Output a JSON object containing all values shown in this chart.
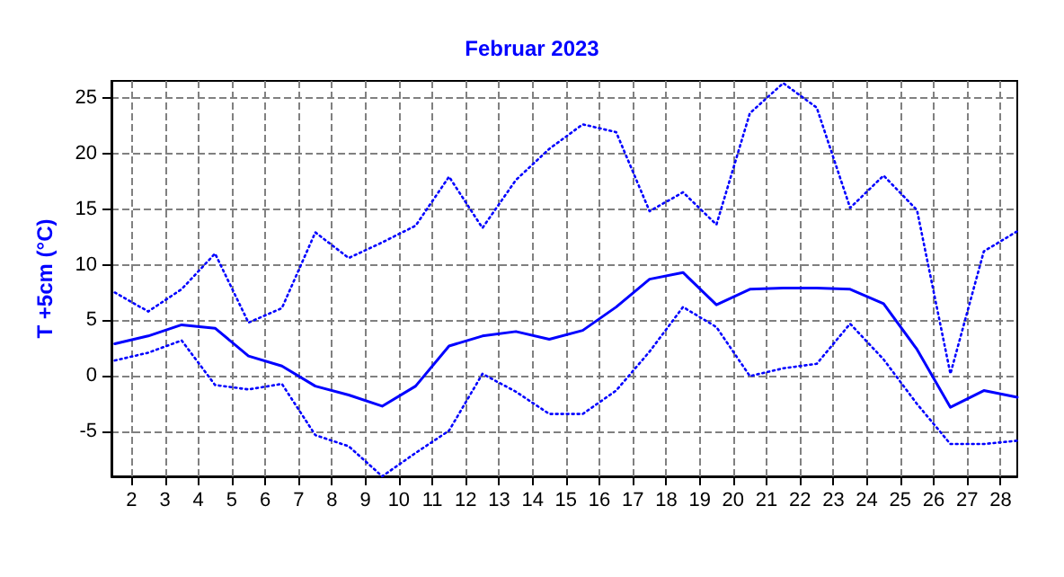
{
  "chart_data": {
    "type": "line",
    "title": "Februar 2023",
    "ylabel": "T +5cm (°C)",
    "x": [
      1.5,
      2.5,
      3.5,
      4.5,
      5.5,
      6.5,
      7.5,
      8.5,
      9.5,
      10.5,
      11.5,
      12.5,
      13.5,
      14.5,
      15.5,
      16.5,
      17.5,
      18.5,
      19.5,
      20.5,
      21.5,
      22.5,
      23.5,
      24.5,
      25.5,
      26.5,
      27.5,
      28.5
    ],
    "series": [
      {
        "color": "#0000ff",
        "line_style": "dotted",
        "values": [
          7.5,
          5.8,
          7.8,
          11.0,
          4.8,
          6.1,
          12.9,
          10.6,
          12.0,
          13.5,
          17.9,
          13.3,
          17.6,
          20.4,
          22.6,
          21.9,
          14.8,
          16.5,
          13.6,
          23.6,
          26.3,
          24.1,
          15.1,
          18.0,
          14.9,
          0.2,
          11.2,
          13.0
        ]
      },
      {
        "color": "#0000ff",
        "line_style": "solid",
        "values": [
          2.9,
          3.6,
          4.6,
          4.3,
          1.8,
          0.9,
          -0.9,
          -1.7,
          -2.7,
          -0.9,
          2.7,
          3.6,
          4.0,
          3.3,
          4.1,
          6.2,
          8.7,
          9.3,
          6.4,
          7.8,
          7.9,
          7.9,
          7.8,
          6.5,
          2.4,
          -2.8,
          -1.3,
          -1.9
        ]
      },
      {
        "color": "#0000ff",
        "line_style": "dotted",
        "values": [
          1.4,
          2.1,
          3.2,
          -0.8,
          -1.2,
          -0.7,
          -5.3,
          -6.3,
          -9.0,
          -6.9,
          -4.9,
          0.2,
          -1.4,
          -3.4,
          -3.4,
          -1.3,
          2.2,
          6.2,
          4.4,
          0.0,
          0.7,
          1.1,
          4.7,
          1.5,
          -2.5,
          -6.1,
          -6.1,
          -5.8
        ]
      }
    ],
    "xlim": [
      1.4,
      28.5
    ],
    "xticks": [
      2,
      3,
      4,
      5,
      6,
      7,
      8,
      9,
      10,
      11,
      12,
      13,
      14,
      15,
      16,
      17,
      18,
      19,
      20,
      21,
      22,
      23,
      24,
      25,
      26,
      27,
      28
    ],
    "ylim": [
      -9,
      26.5
    ],
    "yticks": [
      -5,
      0,
      5,
      10,
      15,
      20,
      25
    ],
    "grid": true,
    "marker": "none"
  }
}
